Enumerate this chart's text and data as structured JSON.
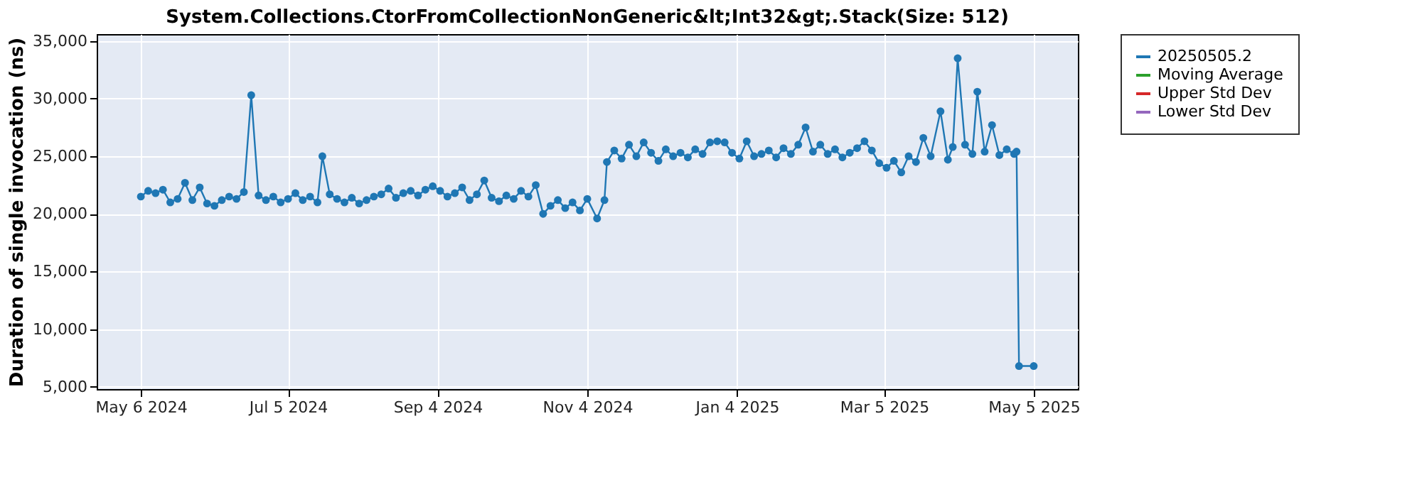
{
  "chart_data": {
    "type": "line",
    "title": "System.Collections.CtorFromCollectionNonGeneric&lt;Int32&gt;.Stack(Size: 512)",
    "ylabel": "Duration of single invocation (ns)",
    "x": [
      "2024-05-06",
      "2024-05-09",
      "2024-05-12",
      "2024-05-15",
      "2024-05-18",
      "2024-05-21",
      "2024-05-24",
      "2024-05-27",
      "2024-05-30",
      "2024-06-02",
      "2024-06-05",
      "2024-06-08",
      "2024-06-11",
      "2024-06-14",
      "2024-06-17",
      "2024-06-20",
      "2024-06-23",
      "2024-06-26",
      "2024-06-29",
      "2024-07-02",
      "2024-07-05",
      "2024-07-08",
      "2024-07-11",
      "2024-07-14",
      "2024-07-17",
      "2024-07-19",
      "2024-07-22",
      "2024-07-25",
      "2024-07-28",
      "2024-07-31",
      "2024-08-03",
      "2024-08-06",
      "2024-08-09",
      "2024-08-12",
      "2024-08-15",
      "2024-08-18",
      "2024-08-21",
      "2024-08-24",
      "2024-08-27",
      "2024-08-30",
      "2024-09-02",
      "2024-09-05",
      "2024-09-08",
      "2024-09-11",
      "2024-09-14",
      "2024-09-17",
      "2024-09-20",
      "2024-09-23",
      "2024-09-26",
      "2024-09-29",
      "2024-10-02",
      "2024-10-05",
      "2024-10-08",
      "2024-10-11",
      "2024-10-14",
      "2024-10-17",
      "2024-10-20",
      "2024-10-23",
      "2024-10-26",
      "2024-10-29",
      "2024-11-01",
      "2024-11-04",
      "2024-11-08",
      "2024-11-11",
      "2024-11-12",
      "2024-11-15",
      "2024-11-18",
      "2024-11-21",
      "2024-11-24",
      "2024-11-27",
      "2024-11-30",
      "2024-12-03",
      "2024-12-06",
      "2024-12-09",
      "2024-12-12",
      "2024-12-15",
      "2024-12-18",
      "2024-12-21",
      "2024-12-24",
      "2024-12-27",
      "2024-12-30",
      "2025-01-02",
      "2025-01-05",
      "2025-01-08",
      "2025-01-11",
      "2025-01-14",
      "2025-01-17",
      "2025-01-20",
      "2025-01-23",
      "2025-01-26",
      "2025-01-29",
      "2025-02-01",
      "2025-02-04",
      "2025-02-07",
      "2025-02-10",
      "2025-02-13",
      "2025-02-16",
      "2025-02-19",
      "2025-02-22",
      "2025-02-25",
      "2025-02-28",
      "2025-03-03",
      "2025-03-06",
      "2025-03-09",
      "2025-03-12",
      "2025-03-15",
      "2025-03-18",
      "2025-03-21",
      "2025-03-24",
      "2025-03-28",
      "2025-03-31",
      "2025-04-02",
      "2025-04-04",
      "2025-04-07",
      "2025-04-10",
      "2025-04-12",
      "2025-04-15",
      "2025-04-18",
      "2025-04-21",
      "2025-04-24",
      "2025-04-27",
      "2025-04-28",
      "2025-04-29",
      "2025-05-05"
    ],
    "series": [
      {
        "name": "20250505.2",
        "color": "#1f77b4",
        "values": [
          21500,
          22000,
          21800,
          22100,
          21000,
          21300,
          22700,
          21200,
          22300,
          20900,
          20700,
          21200,
          21500,
          21300,
          21900,
          30300,
          21600,
          21200,
          21500,
          21000,
          21300,
          21800,
          21200,
          21500,
          21000,
          25000,
          21700,
          21300,
          21000,
          21400,
          20900,
          21200,
          21500,
          21700,
          22200,
          21400,
          21800,
          22000,
          21600,
          22100,
          22400,
          22000,
          21500,
          21800,
          22300,
          21200,
          21700,
          22900,
          21400,
          21100,
          21600,
          21300,
          22000,
          21500,
          22500,
          20000,
          20700,
          21200,
          20500,
          21000,
          20300,
          21300,
          19600,
          21200,
          24500,
          25500,
          24800,
          26000,
          25000,
          26200,
          25300,
          24600,
          25600,
          25000,
          25300,
          24900,
          25600,
          25200,
          26200,
          26300,
          26200,
          25300,
          24800,
          26300,
          25000,
          25200,
          25500,
          24900,
          25700,
          25200,
          26000,
          27500,
          25400,
          26000,
          25200,
          25600,
          24900,
          25300,
          25700,
          26300,
          25500,
          24400,
          24000,
          24600,
          23600,
          25000,
          24500,
          26600,
          25000,
          28900,
          24700,
          25800,
          33500,
          26000,
          25200,
          30600,
          25400,
          27700,
          25100,
          25600,
          25200,
          25400,
          6800,
          6800
        ]
      },
      {
        "name": "Moving Average",
        "color": "#2ca02c",
        "values": [
          null,
          null,
          null,
          null,
          null,
          null,
          null,
          null,
          null,
          null,
          null,
          null,
          null,
          null,
          null,
          null,
          null,
          null,
          null,
          null,
          null,
          null,
          null,
          null,
          null,
          null,
          null,
          null,
          null,
          null,
          null,
          null,
          null,
          null,
          null,
          null,
          null,
          null,
          null,
          null,
          null,
          null,
          null,
          null,
          null,
          null,
          null,
          null,
          null,
          null,
          null,
          null,
          null,
          null,
          null,
          null,
          null,
          null,
          null,
          null,
          null,
          null,
          null,
          null,
          null,
          null,
          null,
          null,
          null,
          null,
          null,
          null,
          null,
          null,
          null,
          null,
          null,
          null,
          null,
          null,
          null,
          null,
          null,
          null,
          null,
          null,
          null,
          null,
          null,
          null,
          null,
          null,
          null,
          null,
          null,
          null,
          null,
          null,
          null,
          null,
          null,
          null,
          null,
          null,
          null,
          null,
          null,
          null,
          null,
          null,
          null,
          null,
          null,
          null,
          null,
          null,
          null,
          null,
          null,
          null,
          null,
          null,
          null,
          null
        ]
      },
      {
        "name": "Upper Std Dev",
        "color": "#d62728",
        "values": [
          null,
          null,
          null,
          null,
          null,
          null,
          null,
          null,
          null,
          null,
          null,
          null,
          null,
          null,
          null,
          null,
          null,
          null,
          null,
          null,
          null,
          null,
          null,
          null,
          null,
          null,
          null,
          null,
          null,
          null,
          null,
          null,
          null,
          null,
          null,
          null,
          null,
          null,
          null,
          null,
          null,
          null,
          null,
          null,
          null,
          null,
          null,
          null,
          null,
          null,
          null,
          null,
          null,
          null,
          null,
          null,
          null,
          null,
          null,
          null,
          null,
          null,
          null,
          null,
          null,
          null,
          null,
          null,
          null,
          null,
          null,
          null,
          null,
          null,
          null,
          null,
          null,
          null,
          null,
          null,
          null,
          null,
          null,
          null,
          null,
          null,
          null,
          null,
          null,
          null,
          null,
          null,
          null,
          null,
          null,
          null,
          null,
          null,
          null,
          null,
          null,
          null,
          null,
          null,
          null,
          null,
          null,
          null,
          null,
          null,
          null,
          null,
          null,
          null,
          null,
          null,
          null,
          null,
          null,
          null,
          null,
          null,
          null,
          null
        ]
      },
      {
        "name": "Lower Std Dev",
        "color": "#9467bd",
        "values": [
          null,
          null,
          null,
          null,
          null,
          null,
          null,
          null,
          null,
          null,
          null,
          null,
          null,
          null,
          null,
          null,
          null,
          null,
          null,
          null,
          null,
          null,
          null,
          null,
          null,
          null,
          null,
          null,
          null,
          null,
          null,
          null,
          null,
          null,
          null,
          null,
          null,
          null,
          null,
          null,
          null,
          null,
          null,
          null,
          null,
          null,
          null,
          null,
          null,
          null,
          null,
          null,
          null,
          null,
          null,
          null,
          null,
          null,
          null,
          null,
          null,
          null,
          null,
          null,
          null,
          null,
          null,
          null,
          null,
          null,
          null,
          null,
          null,
          null,
          null,
          null,
          null,
          null,
          null,
          null,
          null,
          null,
          null,
          null,
          null,
          null,
          null,
          null,
          null,
          null,
          null,
          null,
          null,
          null,
          null,
          null,
          null,
          null,
          null,
          null,
          null,
          null,
          null,
          null,
          null,
          null,
          null,
          null,
          null,
          null,
          null,
          null,
          null,
          null,
          null,
          null,
          null,
          null,
          null,
          null,
          null,
          null,
          null,
          null
        ]
      }
    ],
    "xlim": [
      "2024-04-18",
      "2025-05-23"
    ],
    "xticks": [
      {
        "value": "2024-05-06",
        "label": "May 6 2024"
      },
      {
        "value": "2024-07-05",
        "label": "Jul 5 2024"
      },
      {
        "value": "2024-09-04",
        "label": "Sep 4 2024"
      },
      {
        "value": "2024-11-04",
        "label": "Nov 4 2024"
      },
      {
        "value": "2025-01-04",
        "label": "Jan 4 2025"
      },
      {
        "value": "2025-03-05",
        "label": "Mar 5 2025"
      },
      {
        "value": "2025-05-05",
        "label": "May 5 2025"
      }
    ],
    "ylim": [
      4800,
      35600
    ],
    "yticks": [
      {
        "value": 5000,
        "label": "5,000"
      },
      {
        "value": 10000,
        "label": "10,000"
      },
      {
        "value": 15000,
        "label": "15,000"
      },
      {
        "value": 20000,
        "label": "20,000"
      },
      {
        "value": 25000,
        "label": "25,000"
      },
      {
        "value": 30000,
        "label": "30,000"
      },
      {
        "value": 35000,
        "label": "35,000"
      }
    ],
    "grid": true,
    "legend": "right",
    "marker": "circle",
    "line_style": "solid"
  }
}
